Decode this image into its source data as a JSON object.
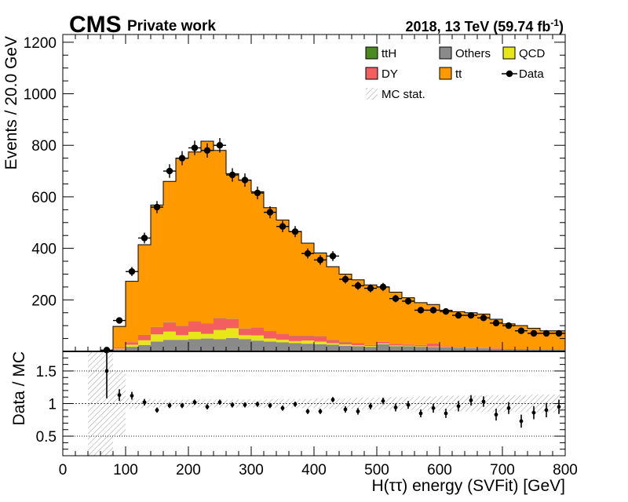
{
  "header": {
    "cms": "CMS",
    "private": "Private work",
    "lumi_prefix": "2018, 13 TeV (59.74 fb",
    "lumi_sup": "-1",
    "lumi_suffix": ")"
  },
  "chart_data": {
    "type": "bar",
    "stacked": true,
    "xlabel": "H(ττ) energy (SVFit) [GeV]",
    "xlim": [
      0,
      800
    ],
    "bin_width": 20,
    "bin_edges_start": [
      60,
      80,
      100,
      120,
      140,
      160,
      180,
      200,
      220,
      240,
      260,
      280,
      300,
      320,
      340,
      360,
      380,
      400,
      420,
      440,
      460,
      480,
      500,
      520,
      540,
      560,
      580,
      600,
      620,
      640,
      660,
      680,
      700,
      720,
      740,
      760,
      780
    ],
    "top_panel": {
      "ylabel": "Events / 20.0 GeV",
      "ylim": [
        0,
        1230
      ],
      "yticks": [
        "200",
        "400",
        "600",
        "800",
        "1000",
        "1200"
      ],
      "xticks": [
        "0",
        "100",
        "200",
        "300",
        "400",
        "500",
        "600",
        "700",
        "800"
      ],
      "series": [
        {
          "name": "Others",
          "color": "#8a8a8a",
          "values": [
            3,
            8,
            18,
            25,
            38,
            45,
            45,
            48,
            50,
            48,
            52,
            48,
            42,
            38,
            35,
            32,
            30,
            28,
            26,
            22,
            20,
            18,
            28,
            20,
            20,
            18,
            17,
            16,
            14,
            12,
            12,
            10,
            9,
            9,
            8,
            8,
            8
          ]
        },
        {
          "name": "QCD",
          "color": "#e6e619",
          "values": [
            0,
            3,
            8,
            18,
            28,
            32,
            18,
            28,
            18,
            35,
            38,
            15,
            20,
            12,
            10,
            8,
            12,
            10,
            6,
            5,
            4,
            3,
            3,
            3,
            2,
            2,
            2,
            1,
            1,
            1,
            1,
            0,
            0,
            0,
            0,
            0,
            0
          ]
        },
        {
          "name": "DY",
          "color": "#f45e5e",
          "values": [
            0,
            5,
            10,
            20,
            28,
            35,
            35,
            40,
            40,
            45,
            36,
            25,
            30,
            28,
            22,
            20,
            18,
            20,
            12,
            8,
            8,
            4,
            6,
            6,
            5,
            5,
            12,
            3,
            2,
            2,
            2,
            2,
            0,
            0,
            0,
            0,
            0
          ]
        },
        {
          "name": "ttH",
          "color": "#4a8a1f",
          "values": [
            0,
            0,
            0,
            1,
            1,
            1,
            1,
            1,
            1,
            1,
            1,
            1,
            1,
            1,
            1,
            1,
            1,
            1,
            1,
            1,
            0,
            0,
            0,
            0,
            0,
            0,
            0,
            0,
            0,
            0,
            0,
            0,
            0,
            0,
            0,
            0,
            0
          ]
        },
        {
          "name": "tt",
          "color": "#fe9900",
          "values": [
            0,
            81,
            236,
            350,
            473,
            547,
            651,
            657,
            707,
            651,
            563,
            576,
            527,
            479,
            442,
            405,
            359,
            323,
            284,
            264,
            246,
            233,
            213,
            201,
            181,
            164,
            151,
            140,
            137,
            135,
            130,
            113,
            98,
            91,
            82,
            72,
            72
          ]
        }
      ],
      "data": {
        "name": "Data",
        "values": [
          5,
          120,
          310,
          440,
          560,
          700,
          750,
          790,
          780,
          800,
          685,
          665,
          615,
          540,
          485,
          465,
          380,
          355,
          370,
          280,
          255,
          245,
          250,
          205,
          195,
          160,
          160,
          155,
          140,
          140,
          130,
          110,
          100,
          80,
          70,
          70,
          70
        ]
      },
      "legend": {
        "placement": "top-right",
        "entries": [
          {
            "label": "ttH",
            "style": "box",
            "color": "#4a8a1f"
          },
          {
            "label": "Others",
            "style": "box",
            "color": "#8a8a8a"
          },
          {
            "label": "QCD",
            "style": "box",
            "color": "#e6e619"
          },
          {
            "label": "DY",
            "style": "box",
            "color": "#f45e5e"
          },
          {
            "label": "tt",
            "style": "box",
            "color": "#fe9900"
          },
          {
            "label": "Data",
            "style": "marker",
            "color": "#000000"
          },
          {
            "label": "MC stat.",
            "style": "hatch",
            "color": "#888888"
          }
        ]
      }
    },
    "ratio_panel": {
      "ylabel": "Data / MC",
      "ylim": [
        0.2,
        1.8
      ],
      "yticks": [
        "0.5",
        "1",
        "1.5"
      ],
      "reference_lines": [
        0.5,
        1.0,
        1.5
      ],
      "values": [
        1.5,
        1.13,
        1.12,
        1.02,
        0.9,
        0.97,
        0.97,
        1.02,
        0.95,
        1.02,
        0.98,
        0.98,
        0.99,
        0.97,
        0.93,
        0.99,
        0.88,
        0.88,
        1.06,
        0.91,
        0.88,
        0.96,
        1.04,
        0.94,
        0.98,
        0.85,
        0.93,
        0.85,
        0.96,
        1.05,
        1.03,
        0.83,
        0.93,
        0.73,
        0.86,
        0.9,
        0.95
      ],
      "errors": [
        0.42,
        0.09,
        0.06,
        0.05,
        0.04,
        0.04,
        0.04,
        0.04,
        0.04,
        0.04,
        0.04,
        0.04,
        0.04,
        0.04,
        0.04,
        0.04,
        0.04,
        0.04,
        0.04,
        0.05,
        0.05,
        0.05,
        0.05,
        0.06,
        0.06,
        0.06,
        0.07,
        0.07,
        0.08,
        0.08,
        0.08,
        0.09,
        0.09,
        0.1,
        0.1,
        0.11,
        0.11
      ],
      "mc_stat_halfwidth": [
        0.9,
        0.5,
        0.08,
        0.07,
        0.06,
        0.06,
        0.06,
        0.06,
        0.06,
        0.06,
        0.06,
        0.06,
        0.06,
        0.07,
        0.07,
        0.07,
        0.07,
        0.08,
        0.08,
        0.08,
        0.09,
        0.09,
        0.09,
        0.1,
        0.1,
        0.11,
        0.11,
        0.12,
        0.12,
        0.12,
        0.13,
        0.13,
        0.13,
        0.13,
        0.14,
        0.14,
        0.14
      ]
    }
  }
}
